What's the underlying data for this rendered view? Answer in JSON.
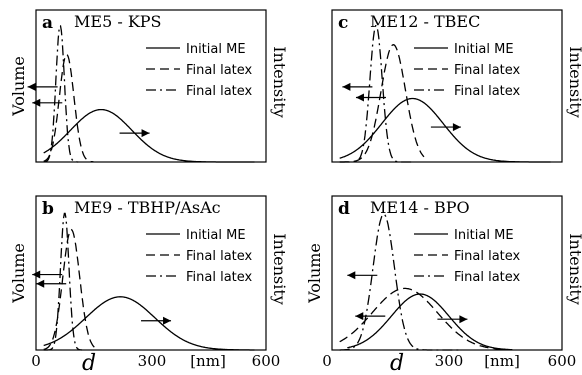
{
  "chart_data": [
    {
      "type": "line",
      "panel": "a",
      "title": "ME5 - KPS",
      "ylabel_left": "Volume",
      "ylabel_right": "Intensity",
      "xlim": [
        0,
        600
      ],
      "legend": [
        "Initial ME",
        "Final latex",
        "Final latex"
      ],
      "series": [
        {
          "name": "Initial ME",
          "style": "solid",
          "mean": 170,
          "sigma": 80,
          "peak": 0.38,
          "lo": 20,
          "hi": 570,
          "axis": "right"
        },
        {
          "name": "Final latex",
          "style": "dashed",
          "mean": 80,
          "sigma": 19,
          "peak": 0.78,
          "lo": 20,
          "hi": 150,
          "axis": "left"
        },
        {
          "name": "Final latex",
          "style": "dashdot",
          "mean": 63,
          "sigma": 11,
          "peak": 0.99,
          "lo": 20,
          "hi": 110,
          "axis": "left"
        }
      ]
    },
    {
      "type": "line",
      "panel": "b",
      "title": "ME9 - TBHP/AsAc",
      "ylabel_left": "Volume",
      "ylabel_right": "Intensity",
      "xlim": [
        0,
        600
      ],
      "legend": [
        "Initial ME",
        "Final latex",
        "Final latex"
      ],
      "series": [
        {
          "name": "Initial ME",
          "style": "solid",
          "mean": 220,
          "sigma": 90,
          "peak": 0.38,
          "lo": 20,
          "hi": 570,
          "axis": "right"
        },
        {
          "name": "Final latex",
          "style": "dashed",
          "mean": 92,
          "sigma": 22,
          "peak": 0.86,
          "lo": 20,
          "hi": 160,
          "axis": "left"
        },
        {
          "name": "Final latex",
          "style": "dashdot",
          "mean": 75,
          "sigma": 11,
          "peak": 0.98,
          "lo": 20,
          "hi": 120,
          "axis": "left"
        }
      ]
    },
    {
      "type": "line",
      "panel": "c",
      "title": "ME12 - TBEC",
      "ylabel_left": "",
      "ylabel_right": "Intensity",
      "xlim": [
        0,
        600
      ],
      "legend": [
        "Initial ME",
        "Final latex",
        "Final latex"
      ],
      "series": [
        {
          "name": "Initial ME",
          "style": "solid",
          "mean": 210,
          "sigma": 80,
          "peak": 0.46,
          "lo": 20,
          "hi": 570,
          "axis": "right"
        },
        {
          "name": "Final latex",
          "style": "dashed",
          "mean": 160,
          "sigma": 32,
          "peak": 0.85,
          "lo": 20,
          "hi": 240,
          "axis": "left"
        },
        {
          "name": "Final latex",
          "style": "dashdot",
          "mean": 115,
          "sigma": 16,
          "peak": 0.99,
          "lo": 20,
          "hi": 210,
          "axis": "left"
        }
      ]
    },
    {
      "type": "line",
      "panel": "d",
      "title": "ME14 - BPO",
      "ylabel_left": "Volume",
      "ylabel_right": "Intensity",
      "xlim": [
        0,
        600
      ],
      "legend": [
        "Initial ME",
        "Final latex",
        "Final latex"
      ],
      "series": [
        {
          "name": "Initial ME",
          "style": "solid",
          "mean": 230,
          "sigma": 75,
          "peak": 0.4,
          "lo": 40,
          "hi": 470,
          "axis": "right"
        },
        {
          "name": "Final latex",
          "style": "dashed",
          "mean": 190,
          "sigma": 85,
          "peak": 0.44,
          "lo": 20,
          "hi": 470,
          "axis": "left"
        },
        {
          "name": "Final latex",
          "style": "dashdot",
          "mean": 135,
          "sigma": 28,
          "peak": 0.97,
          "lo": 20,
          "hi": 330,
          "axis": "left"
        }
      ]
    }
  ],
  "axis": {
    "ticks": [
      "0",
      "300",
      "600"
    ],
    "var": "d",
    "unit": "[nm]"
  }
}
